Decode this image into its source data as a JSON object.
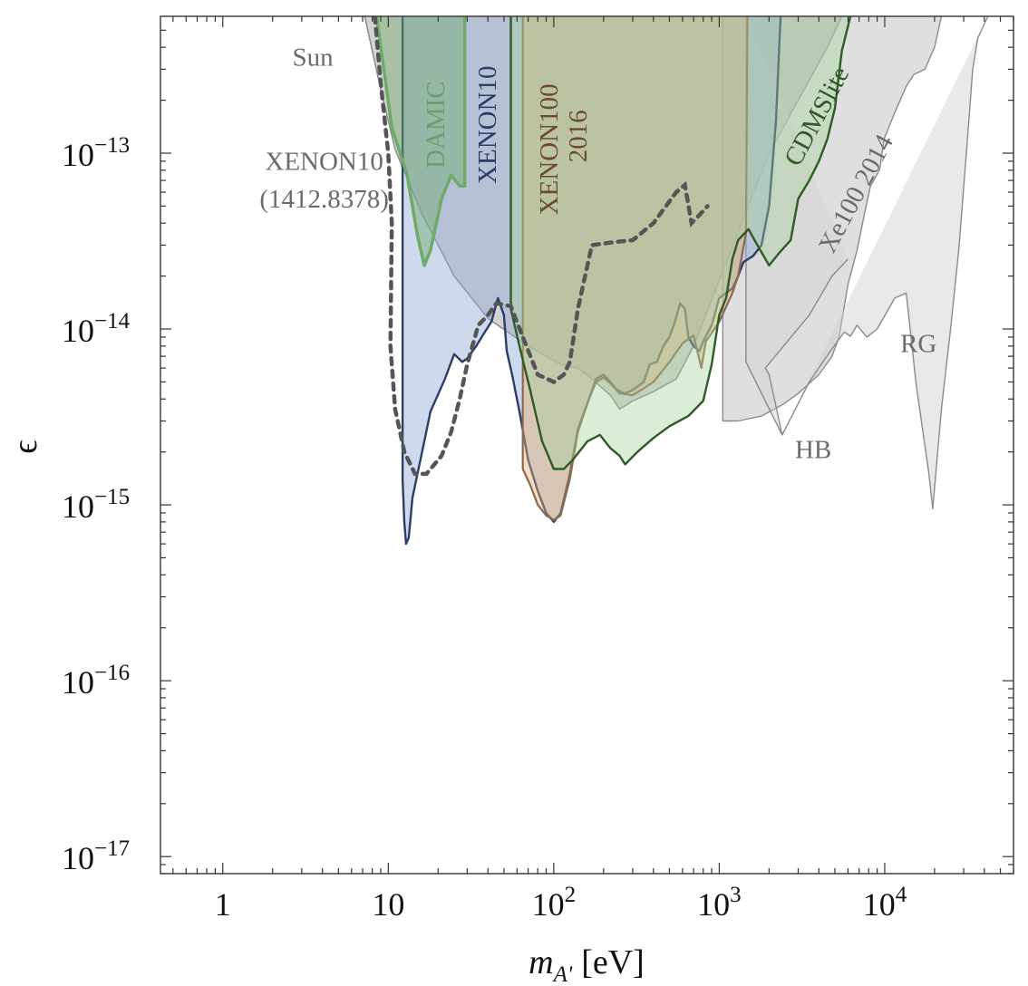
{
  "chart_data": {
    "type": "area",
    "title": "",
    "xlabel": {
      "main": "m",
      "sub": "A'",
      "unit": "[eV]"
    },
    "ylabel": "ϵ",
    "xscale": "log",
    "yscale": "log",
    "xlim": [
      0.42,
      60000
    ],
    "ylim": [
      8e-18,
      6e-13
    ],
    "grid": false,
    "legend": "none",
    "x_ticks": [
      {
        "value": 1,
        "base": "1",
        "exp": ""
      },
      {
        "value": 10,
        "base": "10",
        "exp": ""
      },
      {
        "value": 100,
        "base": "10",
        "exp": "2"
      },
      {
        "value": 1000,
        "base": "10",
        "exp": "3"
      },
      {
        "value": 10000,
        "base": "10",
        "exp": "4"
      }
    ],
    "y_ticks": [
      {
        "value": 1e-13,
        "base": "10",
        "exp": "−13"
      },
      {
        "value": 1e-14,
        "base": "10",
        "exp": "−14"
      },
      {
        "value": 1e-15,
        "base": "10",
        "exp": "−15"
      },
      {
        "value": 1e-16,
        "base": "10",
        "exp": "−16"
      },
      {
        "value": 1e-17,
        "base": "10",
        "exp": "−17"
      }
    ],
    "colors": {
      "sun": "#a8a8a8",
      "sun_line": "#8a8a8a",
      "rg_hb": "#cfcfcf",
      "xe100_2014": "#b8b8b8",
      "gray_line": "#8a8a8a",
      "xenon10": "#93abd6",
      "xenon10_line": "#2a3e66",
      "xenon100": "#e8ad6e",
      "xenon100_line": "#8a6a4e",
      "damic": "#6faa6a",
      "cdmslite": "#a8d39c",
      "cdmslite_line": "#2f5a26",
      "xenon10_1412": "#555555",
      "annotation_text": "#6b6b6b"
    },
    "series": [
      {
        "name": "Sun",
        "kind": "region",
        "points": [
          [
            7.2,
            6e-13
          ],
          [
            9,
            2.3e-13
          ],
          [
            11,
            1.05e-13
          ],
          [
            16,
            4.5e-14
          ],
          [
            25,
            2e-14
          ],
          [
            40,
            1.15e-14
          ],
          [
            70,
            8e-15
          ],
          [
            110,
            6.3e-15
          ],
          [
            140,
            6e-15
          ],
          [
            170,
            5.2e-15
          ],
          [
            220,
            4.2e-15
          ],
          [
            250,
            3.5e-15
          ],
          [
            300,
            3.9e-15
          ],
          [
            400,
            4.4e-15
          ],
          [
            550,
            5.2e-15
          ],
          [
            700,
            8e-15
          ],
          [
            2000,
            1e-13
          ],
          [
            4500,
            4e-13
          ],
          [
            5500,
            6e-13
          ]
        ]
      },
      {
        "name": "Xe100 2014",
        "kind": "region",
        "points": [
          [
            1050,
            6e-13
          ],
          [
            1050,
            3e-15
          ],
          [
            1300,
            3e-15
          ],
          [
            1800,
            3.2e-15
          ],
          [
            2400,
            3.7e-15
          ],
          [
            3000,
            4.3e-15
          ],
          [
            4000,
            5.5e-15
          ],
          [
            4800,
            7e-15
          ],
          [
            5300,
            9e-15
          ],
          [
            6000,
            1.8e-14
          ],
          [
            6800,
            2.8e-14
          ],
          [
            7500,
            4.4e-14
          ],
          [
            8200,
            6.5e-14
          ],
          [
            9300,
            8e-14
          ],
          [
            9900,
            1.2e-13
          ],
          [
            11500,
            1.7e-13
          ],
          [
            13500,
            2.4e-13
          ],
          [
            15000,
            2.8e-13
          ],
          [
            17500,
            3e-13
          ],
          [
            20000,
            4e-13
          ],
          [
            22000,
            6e-13
          ]
        ]
      },
      {
        "name": "HB",
        "kind": "region",
        "points": [
          [
            1450,
            6e-13
          ],
          [
            1450,
            6.5e-15
          ],
          [
            2400,
            2.5e-15
          ],
          [
            2000,
            5.5e-15
          ],
          [
            1900,
            6e-15
          ],
          [
            3500,
            1.2e-14
          ],
          [
            4800,
            2e-14
          ],
          [
            6000,
            2.5e-14
          ]
        ]
      },
      {
        "name": "RG",
        "kind": "region",
        "points": [
          [
            2400,
            2.5e-15
          ],
          [
            3500,
            5e-15
          ],
          [
            4700,
            7.5e-15
          ],
          [
            5700,
            9.6e-15
          ],
          [
            6200,
            9.1e-15
          ],
          [
            6800,
            1.05e-14
          ],
          [
            7800,
            9e-15
          ],
          [
            9000,
            1e-14
          ],
          [
            11500,
            1.5e-14
          ],
          [
            13500,
            1.6e-14
          ],
          [
            15500,
            4.8e-15
          ],
          [
            18500,
            1.5e-15
          ],
          [
            19500,
            9.5e-16
          ],
          [
            22000,
            3.5e-15
          ],
          [
            25000,
            1e-14
          ],
          [
            28000,
            2.8e-14
          ],
          [
            32000,
            1.4e-13
          ],
          [
            34000,
            3e-13
          ],
          [
            36500,
            4.5e-13
          ],
          [
            42000,
            6e-13
          ]
        ]
      },
      {
        "name": "XENON10",
        "kind": "region",
        "points": [
          [
            12.2,
            6e-13
          ],
          [
            12.2,
            1.4e-15
          ],
          [
            12.5,
            8e-16
          ],
          [
            12.8,
            6e-16
          ],
          [
            13.3,
            6.5e-16
          ],
          [
            14,
            1.1e-15
          ],
          [
            16,
            2e-15
          ],
          [
            18,
            3.4e-15
          ],
          [
            22,
            5.2e-15
          ],
          [
            25,
            7.2e-15
          ],
          [
            28,
            6.5e-15
          ],
          [
            30,
            6.8e-15
          ],
          [
            34,
            8e-15
          ],
          [
            38,
            9.5e-15
          ],
          [
            42,
            1.1e-14
          ],
          [
            46,
            1.5e-14
          ],
          [
            50,
            1.2e-14
          ],
          [
            52,
            7.5e-15
          ],
          [
            56,
            5.5e-15
          ],
          [
            62,
            3.4e-15
          ],
          [
            70,
            1.8e-15
          ],
          [
            80,
            1.2e-15
          ],
          [
            90,
            9e-16
          ],
          [
            100,
            8e-16
          ],
          [
            110,
            9e-16
          ],
          [
            125,
            1.5e-15
          ],
          [
            140,
            2.7e-15
          ],
          [
            160,
            3.8e-15
          ],
          [
            180,
            5.2e-15
          ],
          [
            200,
            5.5e-15
          ],
          [
            220,
            5e-15
          ],
          [
            240,
            4.5e-15
          ],
          [
            270,
            4.3e-15
          ],
          [
            300,
            4.5e-15
          ],
          [
            350,
            5e-15
          ],
          [
            380,
            6.3e-15
          ],
          [
            420,
            6.5e-15
          ],
          [
            460,
            8e-15
          ],
          [
            500,
            9e-15
          ],
          [
            540,
            1.1e-14
          ],
          [
            580,
            1.4e-14
          ],
          [
            620,
            1.3e-14
          ],
          [
            650,
            9e-15
          ],
          [
            700,
            8e-15
          ],
          [
            760,
            7.5e-15
          ],
          [
            800,
            8.5e-15
          ],
          [
            900,
            1.05e-14
          ],
          [
            1000,
            1.5e-14
          ],
          [
            1100,
            1.6e-14
          ],
          [
            1200,
            1.7e-14
          ],
          [
            1300,
            2e-14
          ],
          [
            1400,
            2.4e-14
          ],
          [
            1600,
            2.6e-14
          ],
          [
            1800,
            3e-14
          ],
          [
            2000,
            5e-14
          ],
          [
            2200,
            1.5e-13
          ],
          [
            2350,
            6e-13
          ]
        ]
      },
      {
        "name": "XENON100 2016",
        "kind": "region",
        "points": [
          [
            65,
            6e-13
          ],
          [
            65,
            1.6e-15
          ],
          [
            72,
            1.3e-15
          ],
          [
            80,
            1e-15
          ],
          [
            90,
            8.7e-16
          ],
          [
            100,
            8.2e-16
          ],
          [
            110,
            8.7e-16
          ],
          [
            125,
            1.4e-15
          ],
          [
            140,
            2.6e-15
          ],
          [
            160,
            3.8e-15
          ],
          [
            180,
            5e-15
          ],
          [
            200,
            5.3e-15
          ],
          [
            220,
            4.9e-15
          ],
          [
            250,
            4.3e-15
          ],
          [
            300,
            4.2e-15
          ],
          [
            350,
            4.6e-15
          ],
          [
            400,
            5e-15
          ],
          [
            500,
            6.5e-15
          ],
          [
            600,
            8.3e-15
          ],
          [
            700,
            9.2e-15
          ],
          [
            780,
            6e-15
          ],
          [
            830,
            8.5e-15
          ],
          [
            900,
            9.5e-15
          ],
          [
            1000,
            1.1e-14
          ],
          [
            1200,
            1.6e-14
          ],
          [
            1300,
            2e-14
          ],
          [
            1450,
            3.5e-14
          ],
          [
            1480,
            6e-13
          ]
        ]
      },
      {
        "name": "CDMSlite",
        "kind": "region",
        "points": [
          [
            55,
            6e-13
          ],
          [
            55,
            1.3e-14
          ],
          [
            62,
            8e-15
          ],
          [
            72,
            4.5e-15
          ],
          [
            85,
            2.3e-15
          ],
          [
            100,
            1.6e-15
          ],
          [
            115,
            1.6e-15
          ],
          [
            130,
            1.8e-15
          ],
          [
            160,
            2.3e-15
          ],
          [
            190,
            2.5e-15
          ],
          [
            220,
            2.1e-15
          ],
          [
            250,
            1.9e-15
          ],
          [
            270,
            1.7e-15
          ],
          [
            320,
            2e-15
          ],
          [
            400,
            2.4e-15
          ],
          [
            500,
            2.8e-15
          ],
          [
            650,
            3.2e-15
          ],
          [
            800,
            3.9e-15
          ],
          [
            900,
            6.3e-15
          ],
          [
            1000,
            1.2e-14
          ],
          [
            1100,
            1.5e-14
          ],
          [
            1200,
            2.5e-14
          ],
          [
            1300,
            3.2e-14
          ],
          [
            1500,
            3.7e-14
          ],
          [
            1700,
            3e-14
          ],
          [
            2000,
            2.3e-14
          ],
          [
            2300,
            2.7e-14
          ],
          [
            2700,
            3.2e-14
          ],
          [
            3000,
            5.5e-14
          ],
          [
            3500,
            7e-14
          ],
          [
            4000,
            9e-14
          ],
          [
            4500,
            1.2e-13
          ],
          [
            5000,
            1.8e-13
          ],
          [
            5500,
            3.8e-13
          ],
          [
            6200,
            6e-13
          ]
        ]
      },
      {
        "name": "DAMIC",
        "kind": "region",
        "points": [
          [
            8.5,
            6e-13
          ],
          [
            10.5,
            1.4e-13
          ],
          [
            13,
            7.5e-14
          ],
          [
            15,
            3.4e-14
          ],
          [
            16.5,
            2.3e-14
          ],
          [
            18,
            2.8e-14
          ],
          [
            21,
            5.5e-14
          ],
          [
            24,
            7.5e-14
          ],
          [
            27,
            6.5e-14
          ],
          [
            29,
            6.5e-14
          ],
          [
            29,
            6e-13
          ]
        ]
      },
      {
        "name": "XENON10 (1412.8378)",
        "kind": "dashed",
        "points": [
          [
            8.3,
            6e-13
          ],
          [
            9,
            2.5e-13
          ],
          [
            10,
            1e-13
          ],
          [
            10.5,
            4e-14
          ],
          [
            10.3,
            8e-15
          ],
          [
            11,
            3.5e-15
          ],
          [
            12.5,
            2e-15
          ],
          [
            14.5,
            1.5e-15
          ],
          [
            17,
            1.5e-15
          ],
          [
            21,
            1.9e-15
          ],
          [
            24,
            2.6e-15
          ],
          [
            27,
            4e-15
          ],
          [
            30,
            6.3e-15
          ],
          [
            35,
            1.05e-14
          ],
          [
            40,
            1.2e-14
          ],
          [
            45,
            1.4e-14
          ],
          [
            55,
            1.35e-14
          ],
          [
            65,
            9e-15
          ],
          [
            80,
            5.5e-15
          ],
          [
            100,
            5e-15
          ],
          [
            115,
            5.5e-15
          ],
          [
            125,
            6.5e-15
          ],
          [
            140,
            1.3e-14
          ],
          [
            170,
            3e-14
          ],
          [
            220,
            3.1e-14
          ],
          [
            300,
            3.2e-14
          ],
          [
            400,
            4e-14
          ],
          [
            550,
            6e-14
          ],
          [
            620,
            6.6e-14
          ],
          [
            680,
            4e-14
          ],
          [
            750,
            4.4e-14
          ],
          [
            850,
            5e-14
          ]
        ]
      }
    ],
    "annotations": [
      {
        "id": "sun",
        "text": "Sun",
        "x": 3.5,
        "y": 3.4e-13,
        "rotate": false,
        "color": "#6b6b6b"
      },
      {
        "id": "xenon10-1412-l1",
        "text": "XENON10",
        "x": 4.1,
        "y": 8.7e-14,
        "rotate": false,
        "color": "#6b6b6b"
      },
      {
        "id": "xenon10-1412-l2",
        "text": "(1412.8378)",
        "x": 4.1,
        "y": 5.3e-14,
        "rotate": false,
        "color": "#6b6b6b"
      },
      {
        "id": "damic",
        "text": "DAMIC",
        "x": 20,
        "y": 1.45e-13,
        "rotate": true,
        "color": "#6e9e6c"
      },
      {
        "id": "xenon10",
        "text": "XENON10",
        "x": 41,
        "y": 1.45e-13,
        "rotate": true,
        "color": "#2a3e66"
      },
      {
        "id": "xenon100-l1",
        "text": "XENON100",
        "x": 97,
        "y": 1.05e-13,
        "rotate": true,
        "color": "#6a4c33"
      },
      {
        "id": "xenon100-l2",
        "text": "2016",
        "x": 145,
        "y": 1.25e-13,
        "rotate": true,
        "color": "#6a4c33"
      },
      {
        "id": "cdmslite",
        "text": "CDMSlite",
        "x": 4000,
        "y": 1.6e-13,
        "rotate": true,
        "color": "#2f5a26",
        "angle": -62
      },
      {
        "id": "xe100-2014",
        "text": "Xe100 2014",
        "x": 6900,
        "y": 5.8e-14,
        "rotate": true,
        "color": "#6b6b6b",
        "angle": -62
      },
      {
        "id": "rg",
        "text": "RG",
        "x": 16000,
        "y": 8e-15,
        "rotate": false,
        "color": "#6b6b6b"
      },
      {
        "id": "hb",
        "text": "HB",
        "x": 3700,
        "y": 2e-15,
        "rotate": false,
        "color": "#6b6b6b"
      }
    ]
  }
}
